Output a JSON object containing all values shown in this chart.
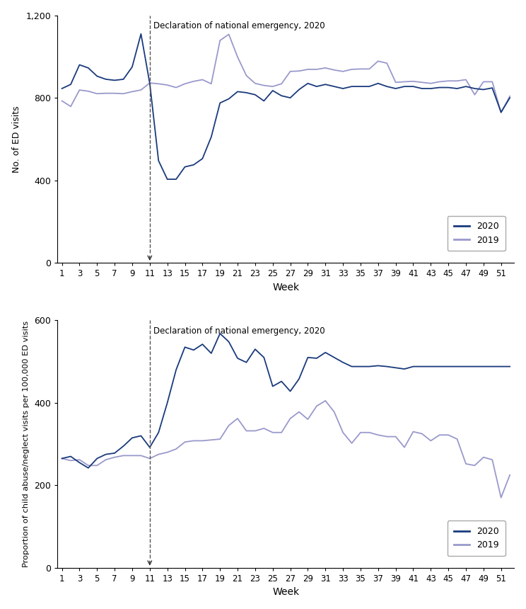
{
  "weeks": [
    1,
    2,
    3,
    4,
    5,
    6,
    7,
    8,
    9,
    10,
    11,
    12,
    13,
    14,
    15,
    16,
    17,
    18,
    19,
    20,
    21,
    22,
    23,
    24,
    25,
    26,
    27,
    28,
    29,
    30,
    31,
    32,
    33,
    34,
    35,
    36,
    37,
    38,
    39,
    40,
    41,
    42,
    43,
    44,
    45,
    46,
    47,
    48,
    49,
    50,
    51,
    52
  ],
  "panel1": {
    "y2020": [
      845,
      865,
      960,
      945,
      905,
      890,
      885,
      890,
      950,
      1110,
      870,
      495,
      405,
      405,
      465,
      475,
      505,
      610,
      775,
      795,
      830,
      825,
      815,
      785,
      835,
      810,
      800,
      840,
      870,
      855,
      865,
      855,
      845,
      855,
      855,
      855,
      870,
      855,
      845,
      855,
      855,
      845,
      845,
      850,
      850,
      845,
      855,
      845,
      840,
      848,
      730,
      800
    ],
    "y2019": [
      785,
      758,
      838,
      832,
      820,
      822,
      822,
      820,
      830,
      838,
      872,
      868,
      862,
      850,
      868,
      880,
      888,
      868,
      1078,
      1108,
      998,
      908,
      870,
      860,
      855,
      868,
      928,
      930,
      938,
      938,
      945,
      935,
      928,
      938,
      940,
      940,
      978,
      968,
      875,
      878,
      880,
      875,
      870,
      878,
      882,
      882,
      888,
      815,
      878,
      878,
      728,
      808
    ],
    "ylabel": "No. of ED visits",
    "ylim": [
      0,
      1200
    ],
    "yticks": [
      0,
      400,
      800,
      1200
    ],
    "ytick_labels": [
      "0",
      "400",
      "800",
      "1,200"
    ]
  },
  "panel2": {
    "y2020": [
      265,
      270,
      255,
      242,
      265,
      275,
      278,
      295,
      315,
      320,
      292,
      328,
      400,
      480,
      535,
      528,
      542,
      520,
      568,
      548,
      508,
      498,
      530,
      510,
      440,
      452,
      428,
      458,
      510,
      508,
      522,
      510,
      498,
      488,
      488,
      488,
      490,
      488,
      485,
      482,
      488,
      488,
      488,
      488,
      488,
      488,
      488,
      488,
      488,
      488,
      488,
      488
    ],
    "y2019": [
      265,
      260,
      262,
      248,
      248,
      262,
      268,
      272,
      272,
      272,
      265,
      275,
      280,
      288,
      305,
      308,
      308,
      310,
      312,
      345,
      362,
      332,
      332,
      338,
      328,
      328,
      362,
      378,
      360,
      392,
      405,
      378,
      328,
      302,
      328,
      328,
      322,
      318,
      318,
      292,
      330,
      325,
      308,
      322,
      322,
      312,
      252,
      248,
      268,
      262,
      170,
      225
    ],
    "ylabel": "Proportion of child abuse/neglect visits per 100,000 ED visits",
    "ylim": [
      0,
      600
    ],
    "yticks": [
      0,
      200,
      400,
      600
    ],
    "ytick_labels": [
      "0",
      "200",
      "400",
      "600"
    ]
  },
  "color_2020": "#1a3a7c",
  "color_2019": "#9999cc",
  "dashed_line_week": 11,
  "annotation_text": "Declaration of national emergency, 2020",
  "xlabel": "Week",
  "xtick_weeks": [
    1,
    3,
    5,
    7,
    9,
    11,
    13,
    15,
    17,
    19,
    21,
    23,
    25,
    27,
    29,
    31,
    33,
    35,
    37,
    39,
    41,
    43,
    45,
    47,
    49,
    51
  ],
  "fig_width": 7.44,
  "fig_height": 8.6,
  "dpi": 100
}
